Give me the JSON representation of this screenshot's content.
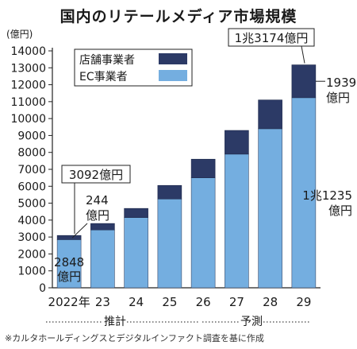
{
  "title": "国内のリテールメディア市場規模",
  "source_note": "※カルタホールディングスとデジタルインファクト調査を基に作成",
  "phase_labels": {
    "estimate": "推計",
    "forecast": "予測"
  },
  "colors": {
    "ec": "#74aee0",
    "store": "#2c3a66",
    "frame": "#222222"
  },
  "chart_data": {
    "type": "bar",
    "stacked": true,
    "ylabel": "(億円)",
    "ylim": [
      0,
      14000
    ],
    "yticks": [
      0,
      1000,
      2000,
      3000,
      4000,
      5000,
      6000,
      7000,
      8000,
      9000,
      10000,
      11000,
      12000,
      13000,
      14000
    ],
    "categories": [
      "2022年",
      "23",
      "24",
      "25",
      "26",
      "27",
      "28",
      "29"
    ],
    "series": [
      {
        "name": "EC事業者",
        "values": [
          2848,
          3420,
          4150,
          5250,
          6500,
          7900,
          9400,
          11235
        ]
      },
      {
        "name": "店舗事業者",
        "values": [
          244,
          380,
          540,
          800,
          1100,
          1400,
          1700,
          1939
        ]
      }
    ],
    "legend": [
      "店舗事業者",
      "EC事業者"
    ],
    "legend_position": "top-left",
    "annotations": {
      "total_2022": "3092億円",
      "store_2022_value": "244",
      "store_2022_unit": "億円",
      "ec_2022_value": "2848",
      "ec_2022_unit": "億円",
      "total_2029": "1兆3174億円",
      "store_2029_value": "1939",
      "store_2029_unit": "億円",
      "ec_2029_value": "1兆1235",
      "ec_2029_unit": "億円"
    }
  }
}
